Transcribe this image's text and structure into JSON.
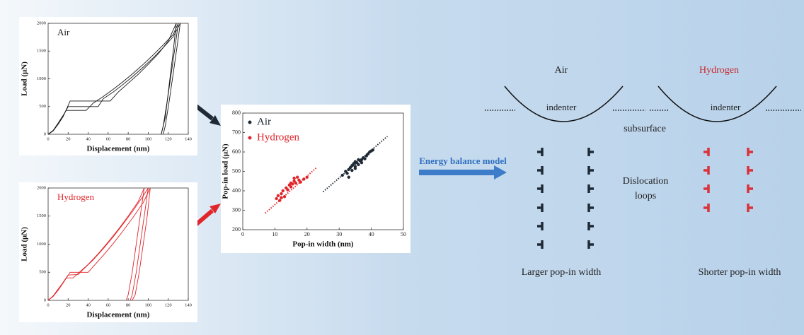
{
  "chart_data": [
    {
      "type": "line",
      "x_label": "Displacement (nm)",
      "y_label": "Load (μN)",
      "annotation": "Air",
      "annotation_color": "#1a1a1a",
      "xlim": [
        0,
        140
      ],
      "xticks": [
        0,
        20,
        40,
        60,
        80,
        100,
        120,
        140
      ],
      "ylim": [
        0,
        2000
      ],
      "yticks": [
        0,
        500,
        1000,
        1500,
        2000
      ],
      "series": [
        {
          "color": "#1a1a1a",
          "x": [
            0,
            5,
            10,
            15,
            18,
            38,
            45,
            55,
            65,
            75,
            85,
            95,
            105,
            115,
            125,
            130,
            127,
            123,
            119,
            115,
            113
          ],
          "values": [
            0,
            70,
            200,
            340,
            430,
            430,
            560,
            680,
            810,
            950,
            1100,
            1260,
            1430,
            1610,
            1800,
            2000,
            1600,
            1100,
            600,
            150,
            0
          ]
        },
        {
          "color": "#1a1a1a",
          "x": [
            0,
            5,
            10,
            15,
            20,
            50,
            55,
            65,
            75,
            85,
            95,
            105,
            115,
            125,
            132,
            129,
            125,
            121,
            117,
            115
          ],
          "values": [
            0,
            65,
            190,
            330,
            500,
            500,
            640,
            760,
            900,
            1050,
            1210,
            1380,
            1560,
            1760,
            2000,
            1600,
            1100,
            600,
            150,
            0
          ]
        },
        {
          "color": "#1a1a1a",
          "x": [
            0,
            5,
            10,
            15,
            22,
            62,
            70,
            80,
            90,
            100,
            110,
            120,
            128,
            125,
            121,
            117,
            113
          ],
          "values": [
            0,
            60,
            180,
            320,
            600,
            600,
            760,
            920,
            1080,
            1260,
            1450,
            1680,
            2000,
            1500,
            900,
            300,
            0
          ]
        }
      ]
    },
    {
      "type": "line",
      "x_label": "Displacement (nm)",
      "y_label": "Load (μN)",
      "annotation": "Hydrogen",
      "annotation_color": "#e0262b",
      "xlim": [
        0,
        140
      ],
      "xticks": [
        0,
        20,
        40,
        60,
        80,
        100,
        120,
        140
      ],
      "ylim": [
        0,
        2000
      ],
      "yticks": [
        0,
        500,
        1000,
        1500,
        2000
      ],
      "series": [
        {
          "color": "#e0262b",
          "x": [
            0,
            5,
            10,
            15,
            18,
            25,
            30,
            40,
            50,
            60,
            70,
            80,
            90,
            96,
            92,
            88,
            84,
            80,
            78
          ],
          "values": [
            0,
            80,
            200,
            320,
            400,
            400,
            480,
            640,
            830,
            1040,
            1260,
            1500,
            1760,
            2000,
            1500,
            1000,
            500,
            100,
            0
          ]
        },
        {
          "color": "#e0262b",
          "x": [
            0,
            5,
            10,
            15,
            20,
            30,
            35,
            45,
            55,
            65,
            75,
            85,
            95,
            100,
            96,
            92,
            88,
            84,
            82
          ],
          "values": [
            0,
            75,
            190,
            320,
            450,
            460,
            550,
            720,
            920,
            1130,
            1360,
            1600,
            1860,
            2000,
            1500,
            1000,
            500,
            100,
            0
          ]
        },
        {
          "color": "#e0262b",
          "x": [
            0,
            5,
            10,
            15,
            22,
            40,
            45,
            55,
            65,
            75,
            85,
            95,
            102,
            99,
            95,
            91,
            87,
            84
          ],
          "values": [
            0,
            70,
            180,
            310,
            500,
            500,
            600,
            800,
            1010,
            1240,
            1480,
            1740,
            2000,
            1500,
            1000,
            500,
            100,
            0
          ]
        }
      ]
    },
    {
      "type": "scatter",
      "x_label": "Pop-in width (nm)",
      "y_label": "Pop-in load (μN)",
      "legend": "top-left",
      "xlim": [
        0,
        50
      ],
      "xticks": [
        0,
        10,
        20,
        30,
        40,
        50
      ],
      "ylim": [
        200,
        800
      ],
      "yticks": [
        200,
        300,
        400,
        500,
        600,
        700,
        800
      ],
      "series": [
        {
          "name": "Air",
          "color": "#1f2a36",
          "x": [
            31,
            32,
            32.5,
            33,
            33.5,
            34,
            34,
            34.5,
            35,
            35,
            35.5,
            36,
            36,
            36.5,
            37,
            37.5,
            38,
            38.5,
            39,
            39.5,
            40,
            40.5,
            33,
            35,
            37
          ],
          "values": [
            480,
            500,
            490,
            510,
            520,
            505,
            530,
            540,
            525,
            550,
            545,
            535,
            560,
            555,
            545,
            570,
            565,
            580,
            590,
            600,
            605,
            610,
            470,
            515,
            560
          ]
        },
        {
          "name": "Hydrogen",
          "color": "#e0262b",
          "x": [
            10.5,
            11,
            11.5,
            12,
            12,
            12.5,
            13,
            13.5,
            14,
            14.5,
            15,
            15,
            15.5,
            16,
            16,
            16.5,
            17,
            17.5,
            18,
            19,
            20
          ],
          "values": [
            360,
            375,
            350,
            385,
            365,
            400,
            370,
            415,
            405,
            430,
            420,
            440,
            435,
            450,
            465,
            440,
            470,
            455,
            445,
            460,
            470
          ]
        }
      ],
      "trend_lines": [
        {
          "color": "#1f2a36",
          "x": [
            25,
            45
          ],
          "values": [
            395,
            680
          ]
        },
        {
          "color": "#e0262b",
          "x": [
            7,
            23
          ],
          "values": [
            285,
            520
          ]
        }
      ]
    }
  ],
  "diagram": {
    "arrow_label": "Energy balance model",
    "air_title": "Air",
    "hydrogen_title": "Hydrogen",
    "indenter_air": "indenter",
    "indenter_hydrogen": "indenter",
    "subsurface": "subsurface",
    "dislocation_label": [
      "Dislocation",
      "loops"
    ],
    "air_caption": "Larger pop-in width",
    "hydrogen_caption": "Shorter pop-in width"
  }
}
